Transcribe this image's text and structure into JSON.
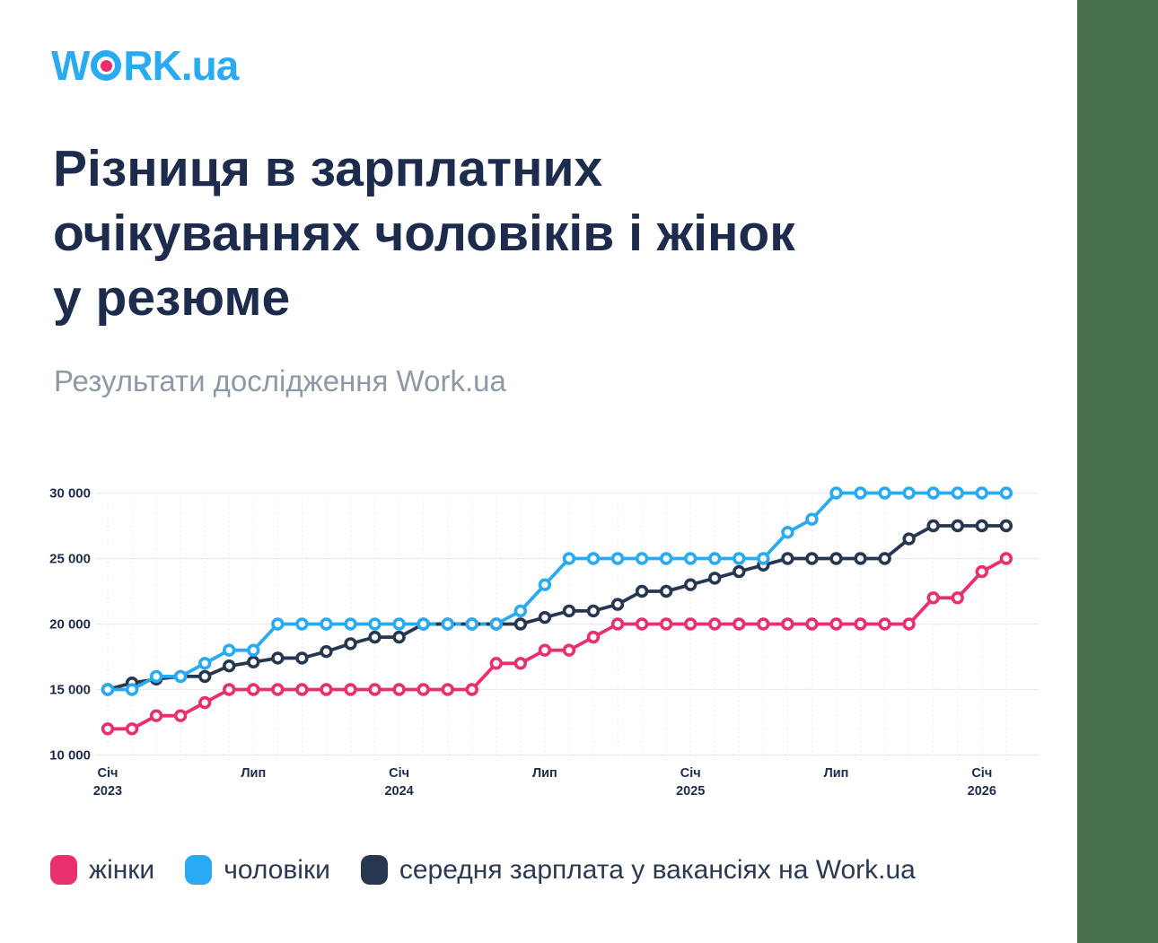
{
  "logo": {
    "prefix": "W",
    "middle": "RK",
    "suffix": ".ua"
  },
  "header": {
    "title_lines": [
      "Різниця в зарплатних",
      "очікуваннях чоловіків і жінок",
      "у резюме"
    ],
    "subtitle": "Результати дослідження Work.ua"
  },
  "chart_data": {
    "type": "line",
    "title": "Різниця в зарплатних очікуваннях чоловіків і жінок у резюме",
    "x": [
      "2023-01",
      "2023-02",
      "2023-03",
      "2023-04",
      "2023-05",
      "2023-06",
      "2023-07",
      "2023-08",
      "2023-09",
      "2023-10",
      "2023-11",
      "2023-12",
      "2024-01",
      "2024-02",
      "2024-03",
      "2024-04",
      "2024-05",
      "2024-06",
      "2024-07",
      "2024-08",
      "2024-09",
      "2024-10",
      "2024-11",
      "2024-12",
      "2025-01",
      "2025-02",
      "2025-03",
      "2025-04",
      "2025-05",
      "2025-06",
      "2025-07",
      "2025-08",
      "2025-09",
      "2025-10",
      "2025-11",
      "2025-12",
      "2026-01",
      "2026-02"
    ],
    "x_axis": {
      "ticks": [
        {
          "i": 0,
          "l1": "Січ",
          "l2": "2023"
        },
        {
          "i": 6,
          "l1": "Лип",
          "l2": ""
        },
        {
          "i": 12,
          "l1": "Січ",
          "l2": "2024"
        },
        {
          "i": 18,
          "l1": "Лип",
          "l2": ""
        },
        {
          "i": 24,
          "l1": "Січ",
          "l2": "2025"
        },
        {
          "i": 30,
          "l1": "Лип",
          "l2": ""
        },
        {
          "i": 36,
          "l1": "Січ",
          "l2": "2026"
        }
      ]
    },
    "y_axis": {
      "min": 10000,
      "max": 30000,
      "ticks": [
        {
          "value": 10000,
          "label": "10 000"
        },
        {
          "value": 15000,
          "label": "15 000"
        },
        {
          "value": 20000,
          "label": "20 000"
        },
        {
          "value": 25000,
          "label": "25 000"
        },
        {
          "value": 30000,
          "label": "30 000"
        }
      ]
    },
    "grid": {
      "horizontal": true,
      "vertical_dotted_monthly": true
    },
    "legend_position": "bottom",
    "series": [
      {
        "name": "жінки",
        "color": "#e7306c",
        "values": [
          12000,
          12000,
          13000,
          13000,
          14000,
          15000,
          15000,
          15000,
          15000,
          15000,
          15000,
          15000,
          15000,
          15000,
          15000,
          15000,
          17000,
          17000,
          18000,
          18000,
          19000,
          20000,
          20000,
          20000,
          20000,
          20000,
          20000,
          20000,
          20000,
          20000,
          20000,
          20000,
          20000,
          20000,
          22000,
          22000,
          24000,
          25000
        ]
      },
      {
        "name": "чоловіки",
        "color": "#2aaaf0",
        "values": [
          15000,
          15000,
          16000,
          16000,
          17000,
          18000,
          18000,
          20000,
          20000,
          20000,
          20000,
          20000,
          20000,
          20000,
          20000,
          20000,
          20000,
          21000,
          23000,
          25000,
          25000,
          25000,
          25000,
          25000,
          25000,
          25000,
          25000,
          25000,
          27000,
          28000,
          30000,
          30000,
          30000,
          30000,
          30000,
          30000,
          30000,
          30000
        ]
      },
      {
        "name": "середня зарплата у вакансіях на Work.ua",
        "color": "#273750",
        "values": [
          15000,
          15500,
          15800,
          16000,
          16000,
          16800,
          17100,
          17400,
          17400,
          17900,
          18500,
          19000,
          19000,
          20000,
          20000,
          20000,
          20000,
          20000,
          20500,
          21000,
          21000,
          21500,
          22500,
          22500,
          23000,
          23500,
          24000,
          24500,
          25000,
          25000,
          25000,
          25000,
          25000,
          26500,
          27500,
          27500,
          27500,
          27500
        ],
        "overlap_dash_with": "чоловіки",
        "overlap_range": [
          13,
          16
        ]
      }
    ]
  },
  "legend": {
    "items": [
      {
        "label": "жінки",
        "color": "#e7306c"
      },
      {
        "label": "чоловіки",
        "color": "#2aaaf0"
      },
      {
        "label": "середня зарплата у вакансіях на Work.ua",
        "color": "#273750"
      }
    ]
  },
  "colors": {
    "accent_bar": "#47704c",
    "title": "#1d2b4c",
    "subtitle": "#8d99a6",
    "logo_blue": "#2aaaf0",
    "logo_dot": "#e7306c",
    "grid_h": "#e9ecf2",
    "grid_v": "#f5e9ed",
    "axis_label": "#1d2b4c"
  }
}
